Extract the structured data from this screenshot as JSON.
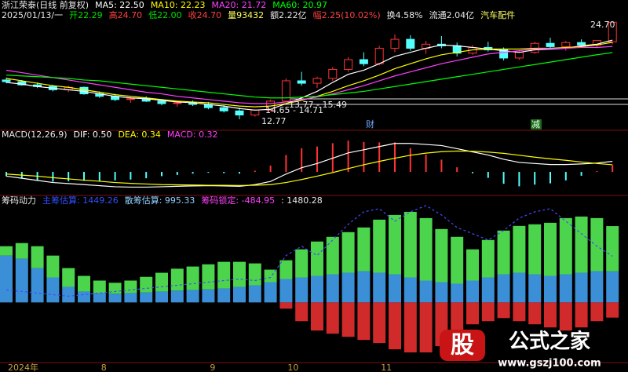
{
  "chart_data": [
    {
      "type": "candlestick",
      "info": [
        {
          "text": "浙江荣泰(日线 前复权)",
          "color": "#e8e8e8"
        },
        {
          "text": "MA5: 22.50",
          "color": "#ffffff"
        },
        {
          "text": "MA10: 22.23",
          "color": "#ffff00"
        },
        {
          "text": "MA20: 21.72",
          "color": "#ff40ff"
        },
        {
          "text": "MA60: 20.97",
          "color": "#00ff00"
        }
      ],
      "info2": [
        {
          "text": "2025/01/13/一",
          "color": "#e8e8e8"
        },
        {
          "text": "开22.29",
          "color": "#00e000"
        },
        {
          "text": "高24.70",
          "color": "#ff4040"
        },
        {
          "text": "低22.00",
          "color": "#00e000"
        },
        {
          "text": "收24.70",
          "color": "#ff4040"
        },
        {
          "text": "量93432",
          "color": "#ffff60"
        },
        {
          "text": "额2.22亿",
          "color": "#e8e8e8"
        },
        {
          "text": "幅2.25(10.02%)",
          "color": "#ff4040"
        },
        {
          "text": "换4.58%",
          "color": "#e8e8e8"
        },
        {
          "text": "流通2.04亿",
          "color": "#e8e8e8"
        },
        {
          "text": "汽车配件",
          "color": "#ffff60"
        }
      ],
      "annotations": [
        "24.70",
        "12.77",
        "14.65 - 14.71",
        "13.77 - 15.49",
        "财",
        "减"
      ],
      "categories": [
        "2024年",
        null,
        null,
        null,
        null,
        null,
        "8",
        null,
        null,
        null,
        null,
        null,
        null,
        "9",
        null,
        null,
        null,
        null,
        "10",
        null,
        null,
        null,
        null,
        null,
        "11",
        null,
        null,
        null,
        null,
        null,
        null,
        null,
        null,
        null,
        null,
        null,
        null,
        null,
        null,
        null
      ],
      "open": [
        17.6,
        17.4,
        17.0,
        16.8,
        16.4,
        16.7,
        15.9,
        15.6,
        15.2,
        15.3,
        15.0,
        14.7,
        14.8,
        14.6,
        14.2,
        13.8,
        13.3,
        13.9,
        15.0,
        17.5,
        17.2,
        17.8,
        18.9,
        20.1,
        19.6,
        21.5,
        22.6,
        21.5,
        22.0,
        21.8,
        20.9,
        21.6,
        21.3,
        20.3,
        21.0,
        22.1,
        21.7,
        22.2,
        21.9,
        22.29
      ],
      "high": [
        17.9,
        17.6,
        17.3,
        17.0,
        16.9,
        16.8,
        16.2,
        15.9,
        15.5,
        15.6,
        15.2,
        15.0,
        15.1,
        14.9,
        14.5,
        14.2,
        14.0,
        15.2,
        17.8,
        18.6,
        18.0,
        19.2,
        20.4,
        21.0,
        21.8,
        23.2,
        23.1,
        22.4,
        23.0,
        22.2,
        21.9,
        22.3,
        21.6,
        21.2,
        22.3,
        22.8,
        22.4,
        22.6,
        22.5,
        24.7
      ],
      "low": [
        17.2,
        16.9,
        16.6,
        16.2,
        16.1,
        15.8,
        15.4,
        15.0,
        14.8,
        14.9,
        14.5,
        14.3,
        14.4,
        14.0,
        13.6,
        12.77,
        13.1,
        13.8,
        14.9,
        16.9,
        16.6,
        17.5,
        18.6,
        19.3,
        19.4,
        21.0,
        21.2,
        20.8,
        21.5,
        20.5,
        20.7,
        21.1,
        20.0,
        20.1,
        20.8,
        21.4,
        21.2,
        21.6,
        21.5,
        22.0
      ],
      "close": [
        17.4,
        17.0,
        16.8,
        16.4,
        16.7,
        15.9,
        15.6,
        15.2,
        15.3,
        15.0,
        14.7,
        14.8,
        14.6,
        14.2,
        13.8,
        13.3,
        13.9,
        15.0,
        17.5,
        17.2,
        17.8,
        18.9,
        20.1,
        19.6,
        21.5,
        22.6,
        21.5,
        22.0,
        21.8,
        20.9,
        21.6,
        21.3,
        20.3,
        21.0,
        22.1,
        21.7,
        22.2,
        21.9,
        22.45,
        24.7
      ],
      "up_color": "#ff3232",
      "down_color": "#54ffff",
      "series": [
        {
          "color": "#ffffff",
          "values": [
            17.3,
            17.1,
            16.8,
            16.6,
            16.4,
            16.2,
            15.9,
            15.6,
            15.4,
            15.3,
            15.1,
            14.9,
            14.8,
            14.6,
            14.4,
            14.1,
            13.9,
            14.0,
            14.7,
            15.4,
            16.2,
            17.3,
            18.3,
            18.8,
            19.6,
            20.5,
            21.0,
            21.5,
            21.9,
            21.8,
            21.6,
            21.4,
            21.2,
            21.0,
            21.3,
            21.4,
            21.5,
            21.8,
            22.0,
            22.5
          ]
        },
        {
          "color": "#ffff00",
          "values": [
            17.8,
            17.5,
            17.2,
            16.9,
            16.7,
            16.4,
            16.1,
            15.8,
            15.6,
            15.4,
            15.2,
            15.0,
            14.9,
            14.8,
            14.6,
            14.4,
            14.3,
            14.4,
            14.7,
            15.1,
            15.6,
            16.2,
            16.9,
            17.5,
            18.2,
            19.0,
            19.6,
            20.2,
            20.7,
            21.0,
            21.3,
            21.4,
            21.4,
            21.4,
            21.5,
            21.5,
            21.6,
            21.7,
            21.9,
            22.23
          ]
        },
        {
          "color": "#ff40ff",
          "values": [
            18.8,
            18.5,
            18.2,
            17.9,
            17.6,
            17.3,
            17.0,
            16.7,
            16.4,
            16.1,
            15.9,
            15.6,
            15.4,
            15.2,
            15.0,
            14.8,
            14.7,
            14.7,
            14.9,
            15.2,
            15.5,
            15.9,
            16.4,
            16.9,
            17.5,
            18.1,
            18.6,
            19.1,
            19.6,
            20.0,
            20.4,
            20.8,
            21.0,
            21.2,
            21.4,
            21.5,
            21.5,
            21.6,
            21.6,
            21.72
          ]
        },
        {
          "color": "#00ff00",
          "values": [
            18.2,
            18.1,
            18.0,
            17.9,
            17.8,
            17.6,
            17.5,
            17.3,
            17.1,
            16.9,
            16.7,
            16.5,
            16.3,
            16.1,
            15.9,
            15.7,
            15.5,
            15.4,
            15.4,
            15.5,
            15.6,
            15.8,
            16.0,
            16.2,
            16.5,
            16.8,
            17.1,
            17.4,
            17.7,
            18.0,
            18.3,
            18.6,
            18.9,
            19.2,
            19.5,
            19.8,
            20.1,
            20.4,
            20.7,
            20.97
          ]
        }
      ],
      "ylim": [
        12,
        25.5
      ]
    },
    {
      "type": "macd",
      "info": [
        {
          "text": "MACD(12,26,9)",
          "color": "#e8e8e8"
        },
        {
          "text": "DIF: 0.50",
          "color": "#ffffff"
        },
        {
          "text": "DEA: 0.34",
          "color": "#ffff00"
        },
        {
          "text": "MACD: 0.32",
          "color": "#ff40ff"
        }
      ],
      "values": [
        -0.2,
        -0.3,
        -0.4,
        -0.46,
        -0.44,
        -0.42,
        -0.42,
        -0.4,
        -0.36,
        -0.3,
        -0.2,
        -0.14,
        -0.08,
        -0.04,
        -0.06,
        -0.08,
        0.06,
        0.3,
        0.8,
        1.12,
        1.2,
        1.36,
        1.48,
        1.42,
        1.4,
        1.4,
        1.12,
        0.82,
        0.58,
        0.22,
        -0.06,
        -0.28,
        -0.56,
        -0.68,
        -0.6,
        -0.54,
        -0.4,
        -0.18,
        0.04,
        0.32
      ],
      "up_color": "#ff3232",
      "down_color": "#54ffff",
      "series": [
        {
          "color": "#ffffff",
          "values": [
            -0.2,
            -0.3,
            -0.4,
            -0.5,
            -0.55,
            -0.6,
            -0.65,
            -0.7,
            -0.72,
            -0.72,
            -0.7,
            -0.68,
            -0.66,
            -0.65,
            -0.66,
            -0.68,
            -0.6,
            -0.45,
            -0.1,
            0.2,
            0.4,
            0.65,
            0.9,
            1.05,
            1.2,
            1.35,
            1.35,
            1.3,
            1.25,
            1.1,
            0.95,
            0.8,
            0.6,
            0.45,
            0.4,
            0.35,
            0.35,
            0.38,
            0.42,
            0.5
          ]
        },
        {
          "color": "#ffff00",
          "values": [
            -0.1,
            -0.15,
            -0.2,
            -0.27,
            -0.33,
            -0.39,
            -0.44,
            -0.5,
            -0.54,
            -0.57,
            -0.6,
            -0.61,
            -0.62,
            -0.63,
            -0.63,
            -0.64,
            -0.63,
            -0.6,
            -0.5,
            -0.36,
            -0.2,
            -0.03,
            0.16,
            0.34,
            0.5,
            0.65,
            0.79,
            0.89,
            0.96,
            0.99,
            0.98,
            0.94,
            0.88,
            0.79,
            0.7,
            0.62,
            0.55,
            0.47,
            0.4,
            0.34
          ]
        }
      ],
      "ylim": [
        -1.0,
        1.6
      ]
    },
    {
      "type": "chip",
      "info": [
        {
          "text": "筹码动力",
          "color": "#e8e8e8"
        },
        {
          "text": "主筹估算: 1449.26",
          "color": "#3050ff"
        },
        {
          "text": "散筹估算: 995.33",
          "color": "#8fd0ff"
        },
        {
          "text": "筹码锁定: -484.95",
          "color": "#ff40ff"
        },
        {
          "text": ": 1480.28",
          "color": "#e8e8e8"
        }
      ],
      "series": [
        {
          "color": "#3a8fd6",
          "values": [
            1500,
            1400,
            1100,
            800,
            500,
            350,
            300,
            280,
            300,
            320,
            350,
            380,
            400,
            420,
            450,
            500,
            550,
            650,
            750,
            800,
            850,
            900,
            950,
            1000,
            950,
            900,
            800,
            700,
            650,
            600,
            700,
            800,
            900,
            950,
            900,
            850,
            900,
            950,
            1000,
            995.33
          ]
        },
        {
          "color": "#4cd44c",
          "values": [
            300,
            500,
            700,
            700,
            600,
            500,
            400,
            350,
            400,
            500,
            600,
            700,
            750,
            800,
            850,
            800,
            700,
            400,
            600,
            900,
            1100,
            1200,
            1300,
            1400,
            1700,
            1900,
            2100,
            2000,
            1700,
            1500,
            1000,
            1200,
            1400,
            1500,
            1600,
            1700,
            1800,
            1800,
            1700,
            1449.26
          ]
        },
        {
          "color": "#d02a2a",
          "values": [
            0,
            0,
            0,
            0,
            0,
            0,
            0,
            0,
            0,
            0,
            0,
            0,
            0,
            0,
            0,
            0,
            0,
            0,
            -200,
            -600,
            -900,
            -1000,
            -1100,
            -1200,
            -1300,
            -1500,
            -1600,
            -1600,
            -1400,
            -1100,
            -700,
            -600,
            -500,
            -600,
            -700,
            -800,
            -900,
            -800,
            -600,
            -484.95
          ]
        }
      ],
      "line": {
        "color": "#4848ff",
        "values": [
          400,
          350,
          300,
          250,
          200,
          250,
          300,
          350,
          400,
          450,
          500,
          550,
          600,
          650,
          700,
          750,
          700,
          800,
          1500,
          1800,
          1500,
          2000,
          2500,
          2900,
          3000,
          2600,
          2900,
          3100,
          2800,
          2400,
          2200,
          2000,
          2300,
          2700,
          2900,
          3000,
          2600,
          2200,
          1800,
          1480.28
        ]
      },
      "ylim": [
        -1875,
        3250
      ]
    }
  ],
  "watermark": [
    "股",
    "公式之家",
    "www.gszj100.com"
  ]
}
